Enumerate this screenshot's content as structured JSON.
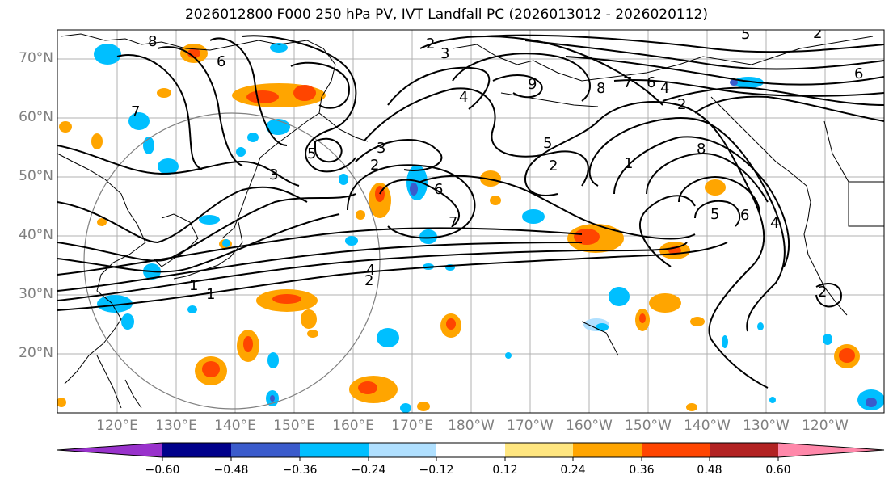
{
  "title": "2026012800 F000 250 hPa PV, IVT Landfall PC (2026013012 - 2026020112)",
  "latitude_labels": [
    "70°N",
    "60°N",
    "50°N",
    "40°N",
    "30°N",
    "20°N"
  ],
  "longitude_labels": [
    "120°E",
    "130°E",
    "140°E",
    "150°E",
    "160°E",
    "170°E",
    "180°W",
    "170°W",
    "160°W",
    "150°W",
    "140°W",
    "130°W",
    "120°W"
  ],
  "colorbar": {
    "tick_labels": [
      "−0.60",
      "−0.48",
      "−0.36",
      "−0.24",
      "−0.12",
      "0.12",
      "0.24",
      "0.36",
      "0.48",
      "0.60"
    ],
    "colors": [
      "#9932cc",
      "#00008b",
      "#3a5bcc",
      "#00bfff",
      "#b0e0ff",
      "#ffffff",
      "#ffe680",
      "#ffa500",
      "#ff4500",
      "#b22222",
      "#ff88aa"
    ]
  },
  "contour_labels": [
    "8",
    "2",
    "3",
    "5",
    "2",
    "6",
    "7",
    "3",
    "5",
    "3",
    "2",
    "6",
    "7",
    "4",
    "1",
    "2",
    "1",
    "6",
    "4",
    "2",
    "9",
    "8",
    "7",
    "5",
    "4",
    "2",
    "1",
    "6",
    "8",
    "2",
    "5",
    "4",
    "6"
  ],
  "colors": {
    "grid": "#b0b0b0",
    "coast": "#000000",
    "contour": "#000000",
    "circle": "#808080",
    "axis_label": "#7f7f7f"
  }
}
